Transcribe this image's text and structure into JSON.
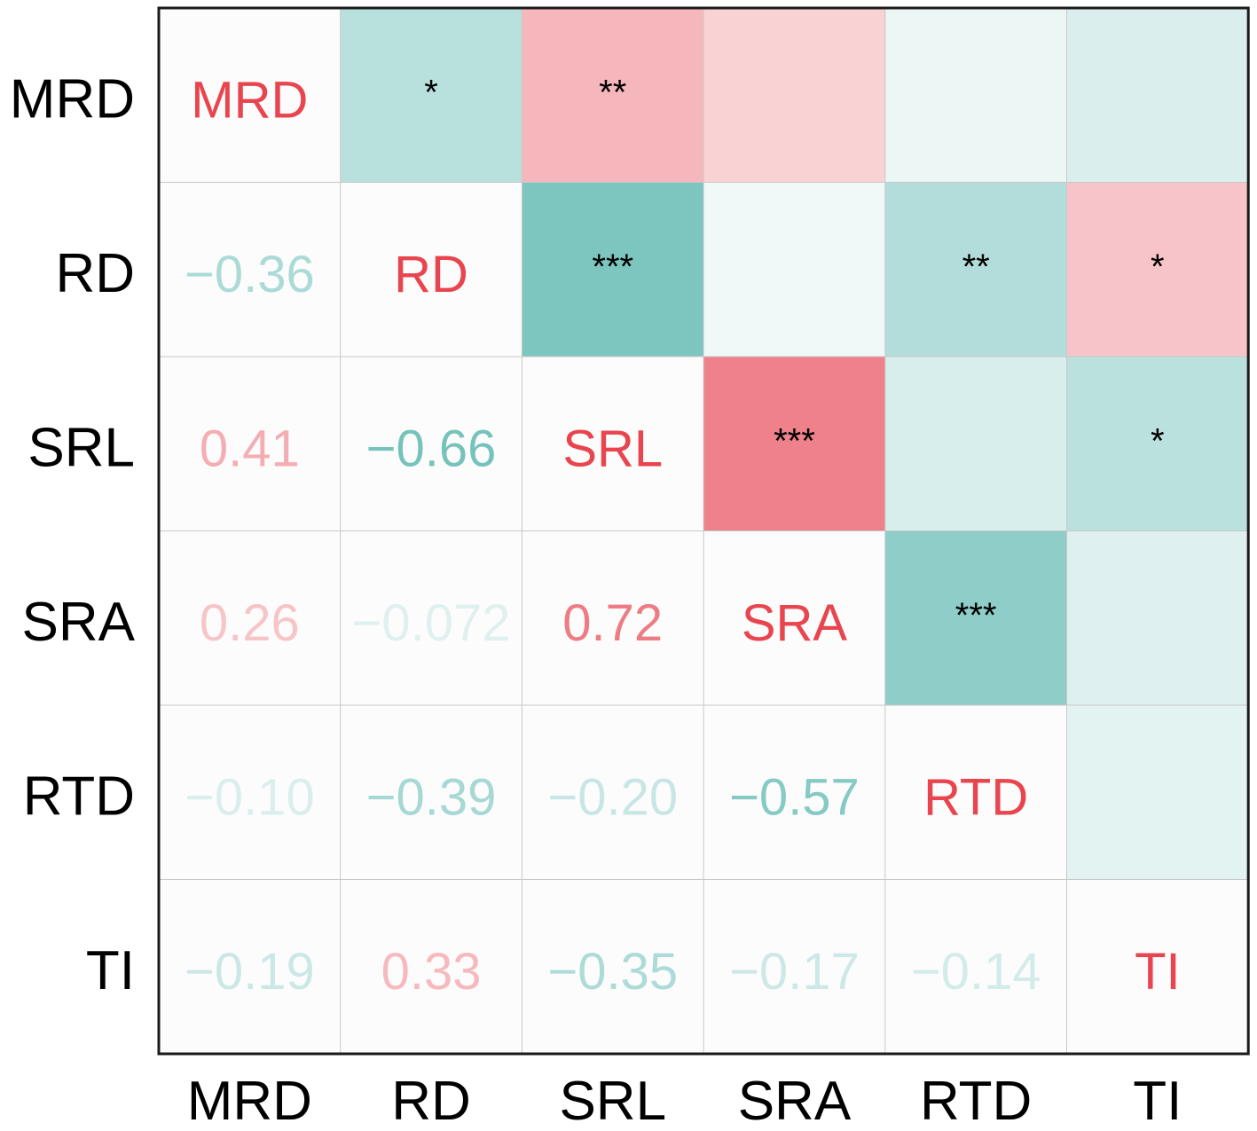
{
  "chart_data": {
    "type": "heatmap",
    "variables": [
      "MRD",
      "RD",
      "SRL",
      "SRA",
      "RTD",
      "TI"
    ],
    "row_labels": [
      "MRD",
      "RD",
      "SRL",
      "SRA",
      "RTD",
      "TI"
    ],
    "col_labels": [
      "MRD",
      "RD",
      "SRL",
      "SRA",
      "RTD",
      "TI"
    ],
    "correlation_labels": [
      [
        "MRD",
        "",
        "",
        "",
        "",
        ""
      ],
      [
        "−0.36",
        "RD",
        "",
        "",
        "",
        ""
      ],
      [
        "0.41",
        "−0.66",
        "SRL",
        "",
        "",
        ""
      ],
      [
        "0.26",
        "−0.072",
        "0.72",
        "SRA",
        "",
        ""
      ],
      [
        "−0.10",
        "−0.39",
        "−0.20",
        "−0.57",
        "RTD",
        ""
      ],
      [
        "−0.19",
        "0.33",
        "−0.35",
        "−0.17",
        "−0.14",
        "TI"
      ]
    ],
    "correlations": [
      [
        1,
        -0.36,
        0.41,
        0.26,
        -0.1,
        -0.19
      ],
      [
        -0.36,
        1,
        -0.66,
        -0.072,
        -0.39,
        0.33
      ],
      [
        0.41,
        -0.66,
        1,
        0.72,
        -0.2,
        -0.35
      ],
      [
        0.26,
        -0.072,
        0.72,
        1,
        -0.57,
        -0.17
      ],
      [
        -0.1,
        -0.39,
        -0.2,
        -0.57,
        1,
        -0.14
      ],
      [
        -0.19,
        0.33,
        -0.35,
        -0.17,
        -0.14,
        1
      ]
    ],
    "significance": [
      [
        "",
        "*",
        "**",
        "",
        "",
        ""
      ],
      [
        "",
        "",
        "***",
        "",
        "**",
        "*"
      ],
      [
        "",
        "",
        "",
        "***",
        "",
        "*"
      ],
      [
        "",
        "",
        "",
        "",
        "***",
        ""
      ],
      [
        "",
        "",
        "",
        "",
        "",
        ""
      ],
      [
        "",
        "",
        "",
        "",
        "",
        ""
      ]
    ],
    "colors": {
      "positive": "#e8505b",
      "negative": "#3aa99f",
      "diagonal_text": "#e8454f",
      "background": "#fdfcfc",
      "grid": "#c8c8c8",
      "frame": "#1a1a1a",
      "label": "#000000"
    }
  }
}
